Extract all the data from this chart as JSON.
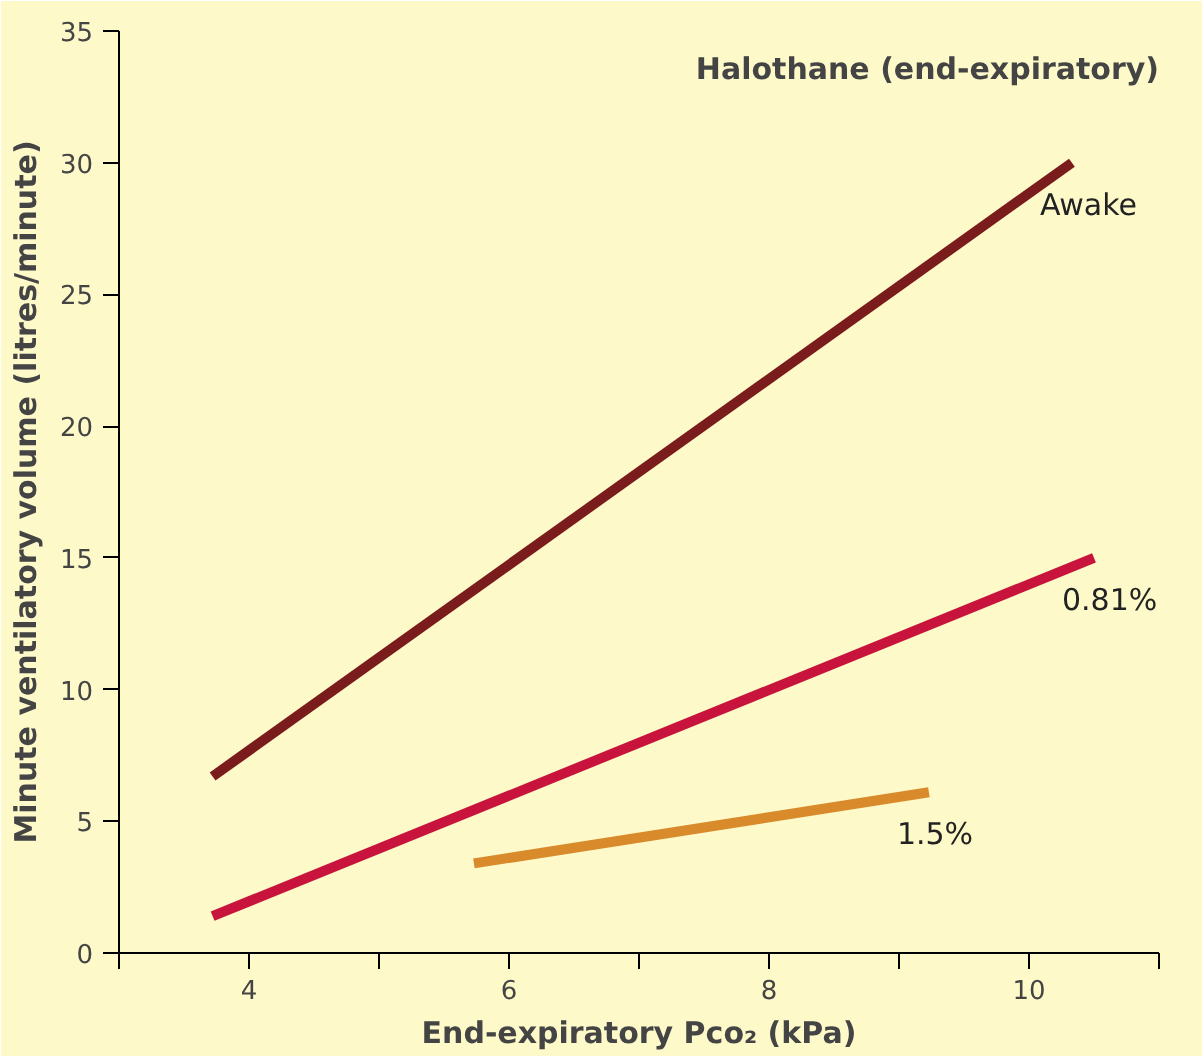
{
  "chart_data": {
    "type": "line",
    "title": "Halothane (end-expiratory)",
    "xlabel": "End-expiratory Pco₂ (kPa)",
    "ylabel": "Minute ventilatory volume (litres/minute)",
    "xlim": [
      3,
      11
    ],
    "xticks": [
      {
        "value": 3,
        "label": null
      },
      {
        "value": 4,
        "label": "4"
      },
      {
        "value": 5,
        "label": null
      },
      {
        "value": 6,
        "label": "6"
      },
      {
        "value": 7,
        "label": null
      },
      {
        "value": 8,
        "label": "8"
      },
      {
        "value": 9,
        "label": null
      },
      {
        "value": 10,
        "label": "10"
      },
      {
        "value": 11,
        "label": null
      }
    ],
    "ylim": [
      0,
      35
    ],
    "yticks": [
      0,
      5,
      10,
      15,
      20,
      25,
      30,
      35
    ],
    "grid": false,
    "series": [
      {
        "name": "Awake",
        "color": "#7b1c1c",
        "x": [
          3.72,
          10.33
        ],
        "values": [
          6.7,
          30.0
        ]
      },
      {
        "name": "0.81%",
        "color": "#c8143c",
        "x": [
          3.72,
          10.5
        ],
        "values": [
          1.4,
          15.0
        ]
      },
      {
        "name": "1.5%",
        "color": "#d98a2b",
        "x": [
          5.73,
          9.23
        ],
        "values": [
          3.4,
          6.1
        ]
      }
    ]
  }
}
